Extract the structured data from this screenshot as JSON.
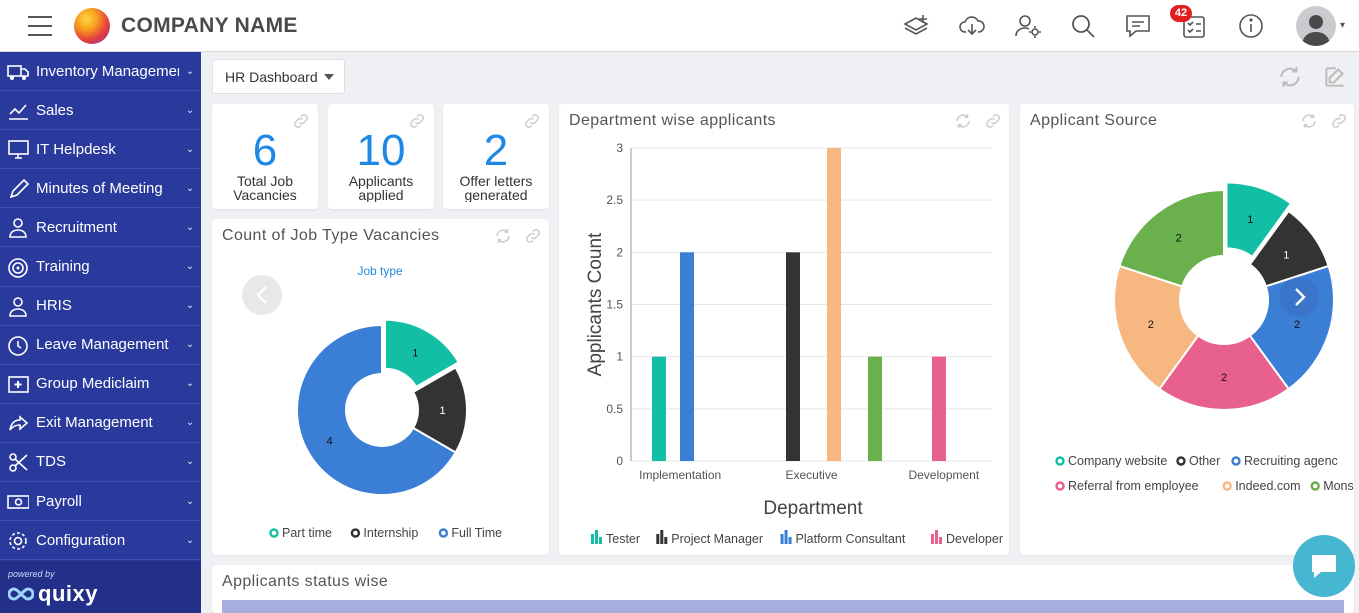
{
  "header": {
    "company_name": "COMPANY NAME",
    "notification_count": "42"
  },
  "sidebar": {
    "items": [
      {
        "label": "Inventory Management",
        "icon": "truck-icon"
      },
      {
        "label": "Sales",
        "icon": "chart-line-icon"
      },
      {
        "label": "IT Helpdesk",
        "icon": "monitor-icon"
      },
      {
        "label": "Minutes of Meeting",
        "icon": "pen-icon"
      },
      {
        "label": "Recruitment",
        "icon": "user-icon"
      },
      {
        "label": "Training",
        "icon": "target-icon"
      },
      {
        "label": "HRIS",
        "icon": "user-icon"
      },
      {
        "label": "Leave Management",
        "icon": "clock-icon"
      },
      {
        "label": "Group Mediclaim",
        "icon": "medical-icon"
      },
      {
        "label": "Exit Management",
        "icon": "share-icon"
      },
      {
        "label": "TDS",
        "icon": "scissors-icon"
      },
      {
        "label": "Payroll",
        "icon": "money-icon"
      },
      {
        "label": "Configuration",
        "icon": "gear-icon"
      }
    ],
    "powered_by": "powered by",
    "brand": "quixy"
  },
  "dashboard": {
    "selected": "HR Dashboard"
  },
  "kpis": [
    {
      "value": "6",
      "label": "Total Job Vacancies"
    },
    {
      "value": "10",
      "label": "Applicants applied"
    },
    {
      "value": "2",
      "label": "Offer letters generated"
    }
  ],
  "job_type_card": {
    "title": "Count of Job Type Vacancies"
  },
  "department_card": {
    "title": "Department wise applicants"
  },
  "source_card": {
    "title": "Applicant Source"
  },
  "status_card": {
    "title": "Applicants status wise"
  },
  "chart_data": [
    {
      "type": "pie",
      "subtitle": "Job type",
      "categories": [
        "Part time",
        "Internship",
        "Full Time"
      ],
      "values": [
        1,
        1,
        4
      ],
      "colors": [
        "#12bfa5",
        "#333333",
        "#3a7fd5"
      ],
      "legend": "bottom"
    },
    {
      "type": "bar",
      "categories": [
        "Implementation",
        "Executive",
        "Development"
      ],
      "series": [
        {
          "name": "Tester",
          "values": [
            1,
            0,
            0
          ],
          "color": "#12bfa5"
        },
        {
          "name": "Project Manager",
          "values": [
            0,
            2,
            0
          ],
          "color": "#333333"
        },
        {
          "name": "Platform Consultant",
          "values": [
            2,
            0,
            0
          ],
          "color": "#3a7fd5"
        },
        {
          "name": "Developer",
          "values": [
            0,
            0,
            1
          ],
          "color": "#e8618c"
        },
        {
          "name": "",
          "values": [
            0,
            3,
            0
          ],
          "color": "#f7b781"
        },
        {
          "name": "",
          "values": [
            0,
            1,
            0
          ],
          "color": "#6ab04c"
        }
      ],
      "xlabel": "Department",
      "ylabel": "Applicants Count",
      "ylim": [
        0,
        3
      ],
      "yticks": [
        "0",
        "0.5",
        "1",
        "1.5",
        "2",
        "2.5",
        "3"
      ],
      "grid": true,
      "legend": "bottom"
    },
    {
      "type": "pie",
      "categories": [
        "Company website",
        "Other",
        "Recruiting agency",
        "Referral from employee",
        "Indeed.com",
        "Monster"
      ],
      "legend_labels": [
        "Company website",
        "Other",
        "Recruiting agenc",
        "Referral from employee",
        "Indeed.com",
        "Mons"
      ],
      "values": [
        1,
        1,
        2,
        2,
        2,
        2
      ],
      "colors": [
        "#12bfa5",
        "#333333",
        "#3a7fd5",
        "#e8618c",
        "#f7b781",
        "#6ab04c"
      ],
      "legend": "bottom"
    }
  ]
}
